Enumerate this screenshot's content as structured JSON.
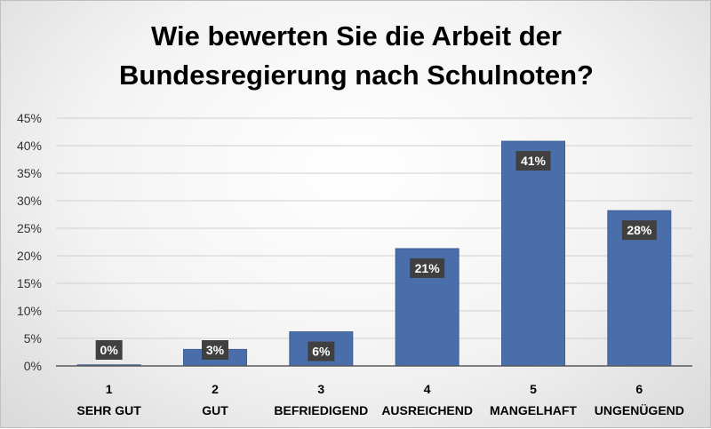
{
  "chart_data": {
    "type": "bar",
    "title_lines": [
      "Wie bewerten Sie die Arbeit der",
      "Bundesregierung nach Schulnoten?"
    ],
    "categories": [
      {
        "number": "1",
        "name": "SEHR GUT"
      },
      {
        "number": "2",
        "name": "GUT"
      },
      {
        "number": "3",
        "name": "BEFRIEDIGEND"
      },
      {
        "number": "4",
        "name": "AUSREICHEND"
      },
      {
        "number": "5",
        "name": "MANGELHAFT"
      },
      {
        "number": "6",
        "name": "UNGENÜGEND"
      }
    ],
    "values": [
      0.2,
      3,
      6.2,
      21.3,
      40.8,
      28.2
    ],
    "data_labels": [
      "0%",
      "3%",
      "6%",
      "21%",
      "41%",
      "28%"
    ],
    "y_ticks": [
      "0%",
      "5%",
      "10%",
      "15%",
      "20%",
      "25%",
      "30%",
      "35%",
      "40%",
      "45%"
    ],
    "ylim": [
      0,
      45
    ],
    "grid": true,
    "legend": "none",
    "colors": {
      "bar": "#4a6ea9",
      "bar_edge": "#3e5f95",
      "label_box": "#404040",
      "gridline": "#d0d0d0",
      "axis": "#595959"
    }
  }
}
